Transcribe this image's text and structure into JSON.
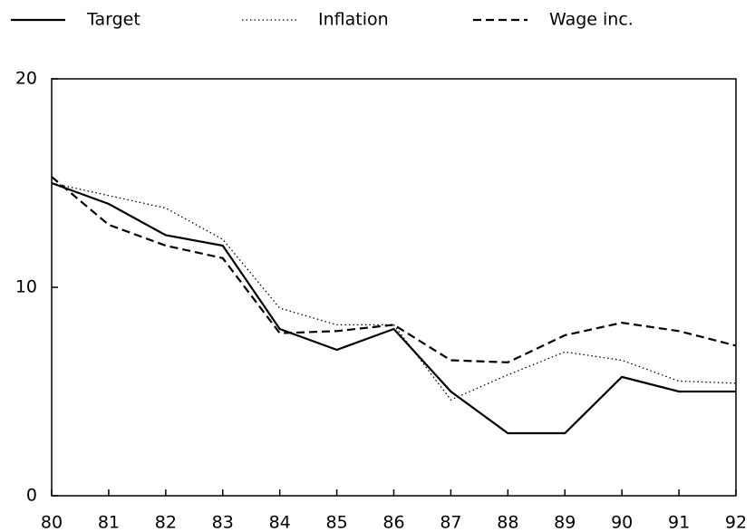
{
  "chart_data": {
    "type": "line",
    "x": [
      80,
      81,
      82,
      83,
      84,
      85,
      86,
      87,
      88,
      89,
      90,
      91,
      92
    ],
    "xlim": [
      80,
      92
    ],
    "xticks": [
      80,
      81,
      82,
      83,
      84,
      85,
      86,
      87,
      88,
      89,
      90,
      91,
      92
    ],
    "ylim": [
      0,
      20
    ],
    "yticks": [
      0,
      10,
      20
    ],
    "series": [
      {
        "name": "Target",
        "color": "#000000",
        "dash": "solid",
        "values": [
          15,
          14,
          12.5,
          12,
          8,
          7,
          8,
          5,
          3,
          3,
          5.7,
          5,
          5
        ]
      },
      {
        "name": "Inflation",
        "color": "#000000",
        "dash": "dotted",
        "values": [
          15,
          14.4,
          13.8,
          12.3,
          9,
          8.2,
          8.2,
          4.6,
          5.8,
          6.9,
          6.5,
          5.5,
          5.4
        ]
      },
      {
        "name": "Wage inc.",
        "color": "#000000",
        "dash": "dashed",
        "values": [
          15.3,
          13,
          12,
          11.4,
          7.8,
          7.9,
          8.2,
          6.5,
          6.4,
          7.7,
          8.3,
          7.9,
          7.2
        ]
      }
    ]
  }
}
